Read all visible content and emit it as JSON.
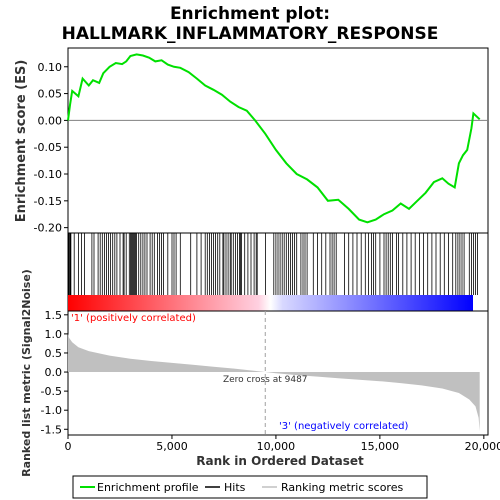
{
  "chart_data": {
    "type": "line",
    "title_line1": "Enrichment plot:",
    "title_line2": "HALLMARK_INFLAMMATORY_RESPONSE",
    "es_panel": {
      "ylabel": "Enrichment score (ES)",
      "ylim": [
        -0.21,
        0.135
      ],
      "yticks": [
        0.1,
        0.05,
        0.0,
        -0.05,
        -0.1,
        -0.15,
        -0.2
      ],
      "ytick_labels": [
        "0.10",
        "0.05",
        "0.00",
        "-0.05",
        "-0.10",
        "-0.15",
        "-0.20"
      ],
      "line_color": "#00e000",
      "points": [
        [
          0,
          0.0
        ],
        [
          100,
          0.03
        ],
        [
          200,
          0.055
        ],
        [
          500,
          0.045
        ],
        [
          700,
          0.078
        ],
        [
          1000,
          0.065
        ],
        [
          1200,
          0.075
        ],
        [
          1500,
          0.07
        ],
        [
          1700,
          0.088
        ],
        [
          2000,
          0.1
        ],
        [
          2300,
          0.107
        ],
        [
          2600,
          0.105
        ],
        [
          2800,
          0.11
        ],
        [
          3000,
          0.12
        ],
        [
          3300,
          0.123
        ],
        [
          3600,
          0.121
        ],
        [
          3900,
          0.117
        ],
        [
          4200,
          0.11
        ],
        [
          4500,
          0.112
        ],
        [
          4800,
          0.104
        ],
        [
          5100,
          0.1
        ],
        [
          5400,
          0.098
        ],
        [
          5800,
          0.09
        ],
        [
          6200,
          0.078
        ],
        [
          6600,
          0.065
        ],
        [
          7000,
          0.057
        ],
        [
          7400,
          0.048
        ],
        [
          7800,
          0.035
        ],
        [
          8200,
          0.025
        ],
        [
          8600,
          0.018
        ],
        [
          9000,
          0.0
        ],
        [
          9487,
          -0.025
        ],
        [
          10000,
          -0.055
        ],
        [
          10500,
          -0.08
        ],
        [
          11000,
          -0.1
        ],
        [
          11500,
          -0.11
        ],
        [
          12000,
          -0.125
        ],
        [
          12500,
          -0.15
        ],
        [
          13000,
          -0.148
        ],
        [
          13500,
          -0.165
        ],
        [
          14000,
          -0.185
        ],
        [
          14400,
          -0.19
        ],
        [
          14800,
          -0.185
        ],
        [
          15200,
          -0.175
        ],
        [
          15600,
          -0.168
        ],
        [
          16000,
          -0.155
        ],
        [
          16400,
          -0.165
        ],
        [
          16800,
          -0.15
        ],
        [
          17200,
          -0.135
        ],
        [
          17600,
          -0.115
        ],
        [
          18000,
          -0.108
        ],
        [
          18300,
          -0.118
        ],
        [
          18600,
          -0.125
        ],
        [
          18800,
          -0.08
        ],
        [
          19000,
          -0.065
        ],
        [
          19200,
          -0.055
        ],
        [
          19400,
          -0.015
        ],
        [
          19500,
          0.013
        ],
        [
          19800,
          0.002
        ]
      ]
    },
    "hits_panel": {
      "hits": [
        30,
        60,
        100,
        140,
        300,
        500,
        650,
        800,
        1150,
        1250,
        1450,
        1550,
        1650,
        1750,
        1850,
        1950,
        2050,
        2150,
        2250,
        2350,
        2500,
        2650,
        2700,
        2800,
        2950,
        3000,
        3050,
        3100,
        3150,
        3200,
        3250,
        3300,
        3400,
        3500,
        3600,
        3700,
        3800,
        3950,
        4050,
        4150,
        4300,
        4400,
        4500,
        4600,
        4800,
        5000,
        5100,
        5200,
        5400,
        5900,
        6200,
        6400,
        6600,
        6700,
        6800,
        6900,
        7000,
        7100,
        7200,
        7300,
        7450,
        7500,
        7600,
        7700,
        7800,
        7850,
        7950,
        8050,
        8150,
        8250,
        8300,
        8350,
        8500,
        8650,
        8800,
        8950,
        9050,
        9100,
        9500,
        9900,
        10000,
        10100,
        10200,
        10300,
        10400,
        10500,
        10600,
        10700,
        10800,
        10900,
        11000,
        11200,
        11300,
        11400,
        11500,
        11800,
        12000,
        12200,
        12400,
        12600,
        12700,
        12800,
        12900,
        13300,
        13500,
        13700,
        13900,
        14100,
        14300,
        14450,
        14600,
        14700,
        14800,
        15000,
        15200,
        15300,
        15400,
        15500,
        15600,
        15800,
        15900,
        16100,
        16300,
        16500,
        16700,
        16900,
        17100,
        17300,
        17500,
        17700,
        17900,
        18100,
        18300,
        18500,
        18650,
        18750,
        18850,
        18950,
        19050,
        19300,
        19400,
        19500,
        19600,
        19700
      ],
      "gradient_start_color": "#ff0000",
      "gradient_mid_color": "#ffffff",
      "gradient_end_color": "#0000ff"
    },
    "metric_panel": {
      "ylabel": "Ranked list metric (Signal2Noise)",
      "xlabel": "Rank in Ordered Dataset",
      "ylim": [
        -1.65,
        1.6
      ],
      "yticks": [
        1.5,
        1.0,
        0.5,
        0.0,
        -0.5,
        -1.0,
        -1.5
      ],
      "ytick_labels": [
        "1.5",
        "1.0",
        "0.5",
        "0.0",
        "-0.5",
        "-1.0",
        "-1.5"
      ],
      "fill_color": "#c0c0c0",
      "points": [
        [
          0,
          1.0
        ],
        [
          50,
          0.9
        ],
        [
          200,
          0.78
        ],
        [
          500,
          0.65
        ],
        [
          1000,
          0.55
        ],
        [
          2000,
          0.43
        ],
        [
          3000,
          0.35
        ],
        [
          4000,
          0.29
        ],
        [
          5000,
          0.24
        ],
        [
          6000,
          0.19
        ],
        [
          7000,
          0.14
        ],
        [
          8000,
          0.09
        ],
        [
          9000,
          0.03
        ],
        [
          9487,
          0.0
        ],
        [
          10000,
          -0.03
        ],
        [
          11000,
          -0.08
        ],
        [
          12000,
          -0.12
        ],
        [
          13000,
          -0.16
        ],
        [
          14000,
          -0.2
        ],
        [
          15000,
          -0.24
        ],
        [
          16000,
          -0.29
        ],
        [
          17000,
          -0.35
        ],
        [
          18000,
          -0.43
        ],
        [
          18800,
          -0.55
        ],
        [
          19300,
          -0.72
        ],
        [
          19600,
          -0.9
        ],
        [
          19750,
          -1.2
        ],
        [
          19800,
          -1.55
        ]
      ],
      "zero_cross_label": "Zero cross at 9487",
      "zero_cross_x": 9487,
      "pos_label": "'1' (positively correlated)",
      "neg_label": "'3' (negatively correlated)",
      "pos_color": "#ff0000",
      "neg_color": "#0000ff"
    },
    "xlim": [
      0,
      20200
    ],
    "xticks": [
      0,
      5000,
      10000,
      15000,
      20000
    ],
    "xtick_labels": [
      "0",
      "5,000",
      "10,000",
      "15,000",
      "20,000"
    ],
    "legend": {
      "position": "bottom",
      "items": [
        {
          "label": "Enrichment profile",
          "color": "#00e000",
          "style": "line"
        },
        {
          "label": "Hits",
          "color": "#000000",
          "style": "line"
        },
        {
          "label": "Ranking metric scores",
          "color": "#c0c0c0",
          "style": "line"
        }
      ]
    }
  }
}
